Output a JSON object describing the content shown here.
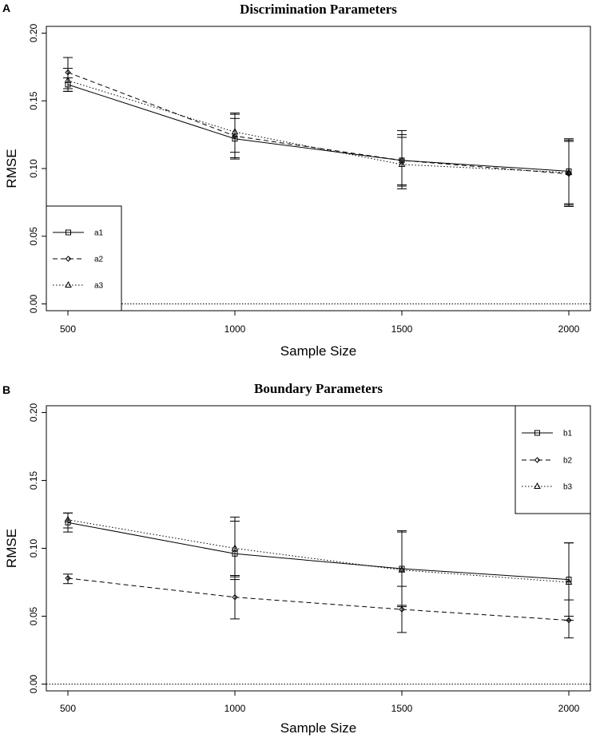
{
  "chart_data": [
    {
      "panel": "A",
      "type": "line",
      "title": "Discrimination Parameters",
      "xlabel": "Sample Size",
      "ylabel": "RMSE",
      "x": [
        500,
        1000,
        1500,
        2000
      ],
      "x_ticks": [
        "500",
        "1000",
        "1500",
        "2000"
      ],
      "y_ticks": [
        "0.00",
        "0.05",
        "0.10",
        "0.15",
        "0.20"
      ],
      "ylim": [
        -0.005,
        0.205
      ],
      "reference_line": 0.0,
      "legend_position": "bottom-left",
      "series": [
        {
          "name": "a1",
          "line": "solid",
          "marker": "square",
          "values": [
            0.162,
            0.122,
            0.106,
            0.098
          ],
          "err_low": [
            0.157,
            0.107,
            0.087,
            0.074
          ],
          "err_high": [
            0.167,
            0.137,
            0.125,
            0.122
          ]
        },
        {
          "name": "a2",
          "line": "dashed",
          "marker": "diamond",
          "values": [
            0.171,
            0.124,
            0.106,
            0.096
          ],
          "err_low": [
            0.159,
            0.108,
            0.088,
            0.072
          ],
          "err_high": [
            0.182,
            0.14,
            0.128,
            0.121
          ]
        },
        {
          "name": "a3",
          "line": "dotted",
          "marker": "triangle",
          "values": [
            0.165,
            0.127,
            0.103,
            0.097
          ],
          "err_low": [
            0.157,
            0.112,
            0.085,
            0.073
          ],
          "err_high": [
            0.174,
            0.141,
            0.123,
            0.12
          ]
        }
      ]
    },
    {
      "panel": "B",
      "type": "line",
      "title": "Boundary Parameters",
      "xlabel": "Sample Size",
      "ylabel": "RMSE",
      "x": [
        500,
        1000,
        1500,
        2000
      ],
      "x_ticks": [
        "500",
        "1000",
        "1500",
        "2000"
      ],
      "y_ticks": [
        "0.00",
        "0.05",
        "0.10",
        "0.15",
        "0.20"
      ],
      "ylim": [
        -0.005,
        0.205
      ],
      "reference_line": 0.0,
      "legend_position": "top-right",
      "series": [
        {
          "name": "b1",
          "line": "solid",
          "marker": "square",
          "values": [
            0.119,
            0.096,
            0.085,
            0.077
          ],
          "err_low": [
            0.112,
            0.08,
            0.058,
            0.05
          ],
          "err_high": [
            0.126,
            0.12,
            0.112,
            0.104
          ]
        },
        {
          "name": "b2",
          "line": "dashed",
          "marker": "diamond",
          "values": [
            0.078,
            0.064,
            0.055,
            0.047
          ],
          "err_low": [
            0.074,
            0.048,
            0.038,
            0.034
          ],
          "err_high": [
            0.081,
            0.079,
            0.072,
            0.062
          ]
        },
        {
          "name": "b3",
          "line": "dotted",
          "marker": "triangle",
          "values": [
            0.121,
            0.1,
            0.084,
            0.075
          ],
          "err_low": [
            0.115,
            0.077,
            0.057,
            0.047
          ],
          "err_high": [
            0.126,
            0.123,
            0.113,
            0.104
          ]
        }
      ]
    }
  ]
}
